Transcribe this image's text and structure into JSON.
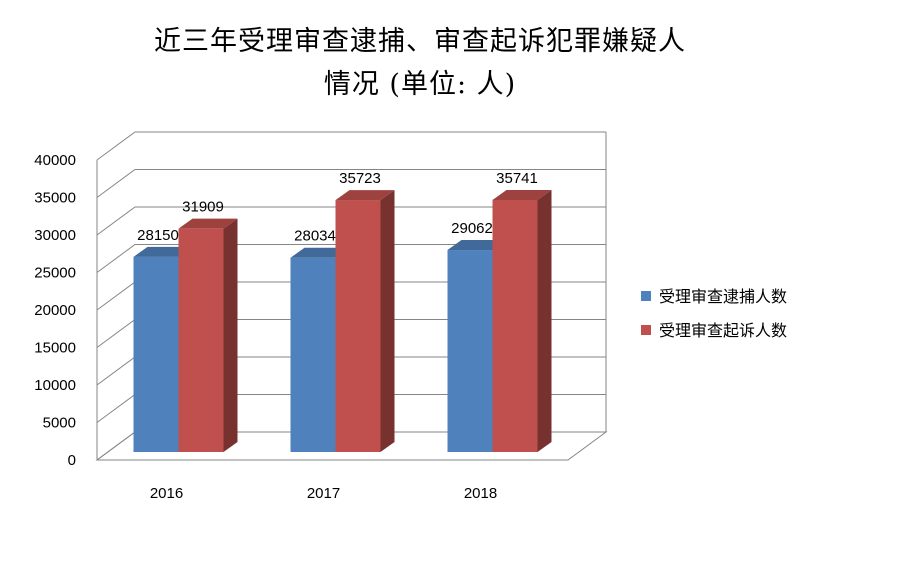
{
  "chart_data": {
    "type": "bar",
    "title": "近三年受理审查逮捕、审查起诉犯罪嫌疑人",
    "subtitle": "情况 (单位: 人)",
    "categories": [
      "2016",
      "2017",
      "2018"
    ],
    "series": [
      {
        "name": "受理审查逮捕人数",
        "values": [
          28150,
          28034,
          29062
        ],
        "color": "#4f81bd"
      },
      {
        "name": "受理审查起诉人数",
        "values": [
          31909,
          35723,
          35741
        ],
        "color": "#c0504d"
      }
    ],
    "ylim": [
      0,
      40000
    ],
    "yticks": [
      0,
      5000,
      10000,
      15000,
      20000,
      25000,
      30000,
      35000,
      40000
    ],
    "grid": true,
    "legend": "right",
    "three_d": true
  }
}
